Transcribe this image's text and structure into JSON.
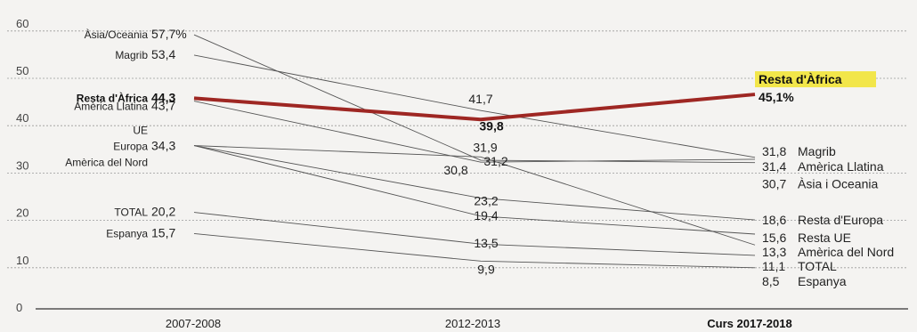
{
  "chart_data": {
    "type": "line",
    "title": "",
    "xlabel": "",
    "ylabel": "",
    "categories": [
      "2007-2008",
      "2012-2013",
      "Curs 2017-2018"
    ],
    "ylim": [
      0,
      60
    ],
    "yticks": [
      0,
      10,
      20,
      30,
      40,
      50,
      60
    ],
    "grid": true,
    "highlight_series": "Resta d'Àfrica",
    "highlight_color": "#9e2723",
    "highlight_label_bg": "#f2e64a",
    "series": [
      {
        "name": "Àsia/Oceania",
        "left_label": "Àsia/Oceania",
        "right_label": "Àsia i Oceania",
        "values": [
          57.7,
          31.2,
          30.7
        ],
        "left_text": "57,7%",
        "mid_text": "31,2",
        "right_text": "30,7"
      },
      {
        "name": "Magrib",
        "left_label": "Magrib",
        "right_label": "Magrib",
        "values": [
          53.4,
          41.7,
          31.8
        ],
        "left_text": "53,4",
        "mid_text": "41,7",
        "right_text": "31,8"
      },
      {
        "name": "Resta d'Àfrica",
        "left_label": "Resta d'Àfrica",
        "right_label": "Resta d'Àfrica",
        "values": [
          44.3,
          39.8,
          45.1
        ],
        "left_text": "44,3",
        "mid_text": "39,8",
        "right_text": "45,1%"
      },
      {
        "name": "Amèrica Llatina",
        "left_label": "Amèrica Llatina",
        "right_label": "Amèrica Llatina",
        "values": [
          43.7,
          30.8,
          31.4
        ],
        "left_text": "43,7",
        "mid_text": "30,8",
        "right_text": "31,4"
      },
      {
        "name": "UE",
        "left_label": "UE",
        "right_label": "Resta UE",
        "values": [
          34.3,
          19.4,
          15.6
        ],
        "left_text": "",
        "mid_text": "19,4",
        "right_text": "15,6"
      },
      {
        "name": "Europa",
        "left_label": "Europa",
        "right_label": "Resta d'Europa",
        "values": [
          34.3,
          23.2,
          18.6
        ],
        "left_text": "34,3",
        "mid_text": "23,2",
        "right_text": "18,6"
      },
      {
        "name": "Amèrica del Nord",
        "left_label": "Amèrica del Nord",
        "right_label": "Amèrica del Nord",
        "values": [
          34.3,
          31.9,
          13.3
        ],
        "left_text": "",
        "mid_text": "31,9",
        "right_text": "13,3"
      },
      {
        "name": "TOTAL",
        "left_label": "TOTAL",
        "right_label": "TOTAL",
        "values": [
          20.2,
          13.5,
          11.1
        ],
        "left_text": "20,2",
        "mid_text": "13,5",
        "right_text": "11,1"
      },
      {
        "name": "Espanya",
        "left_label": "Espanya",
        "right_label": "Espanya",
        "values": [
          15.7,
          9.9,
          8.5
        ],
        "left_text": "15,7",
        "mid_text": "9,9",
        "right_text": "8,5"
      }
    ]
  }
}
